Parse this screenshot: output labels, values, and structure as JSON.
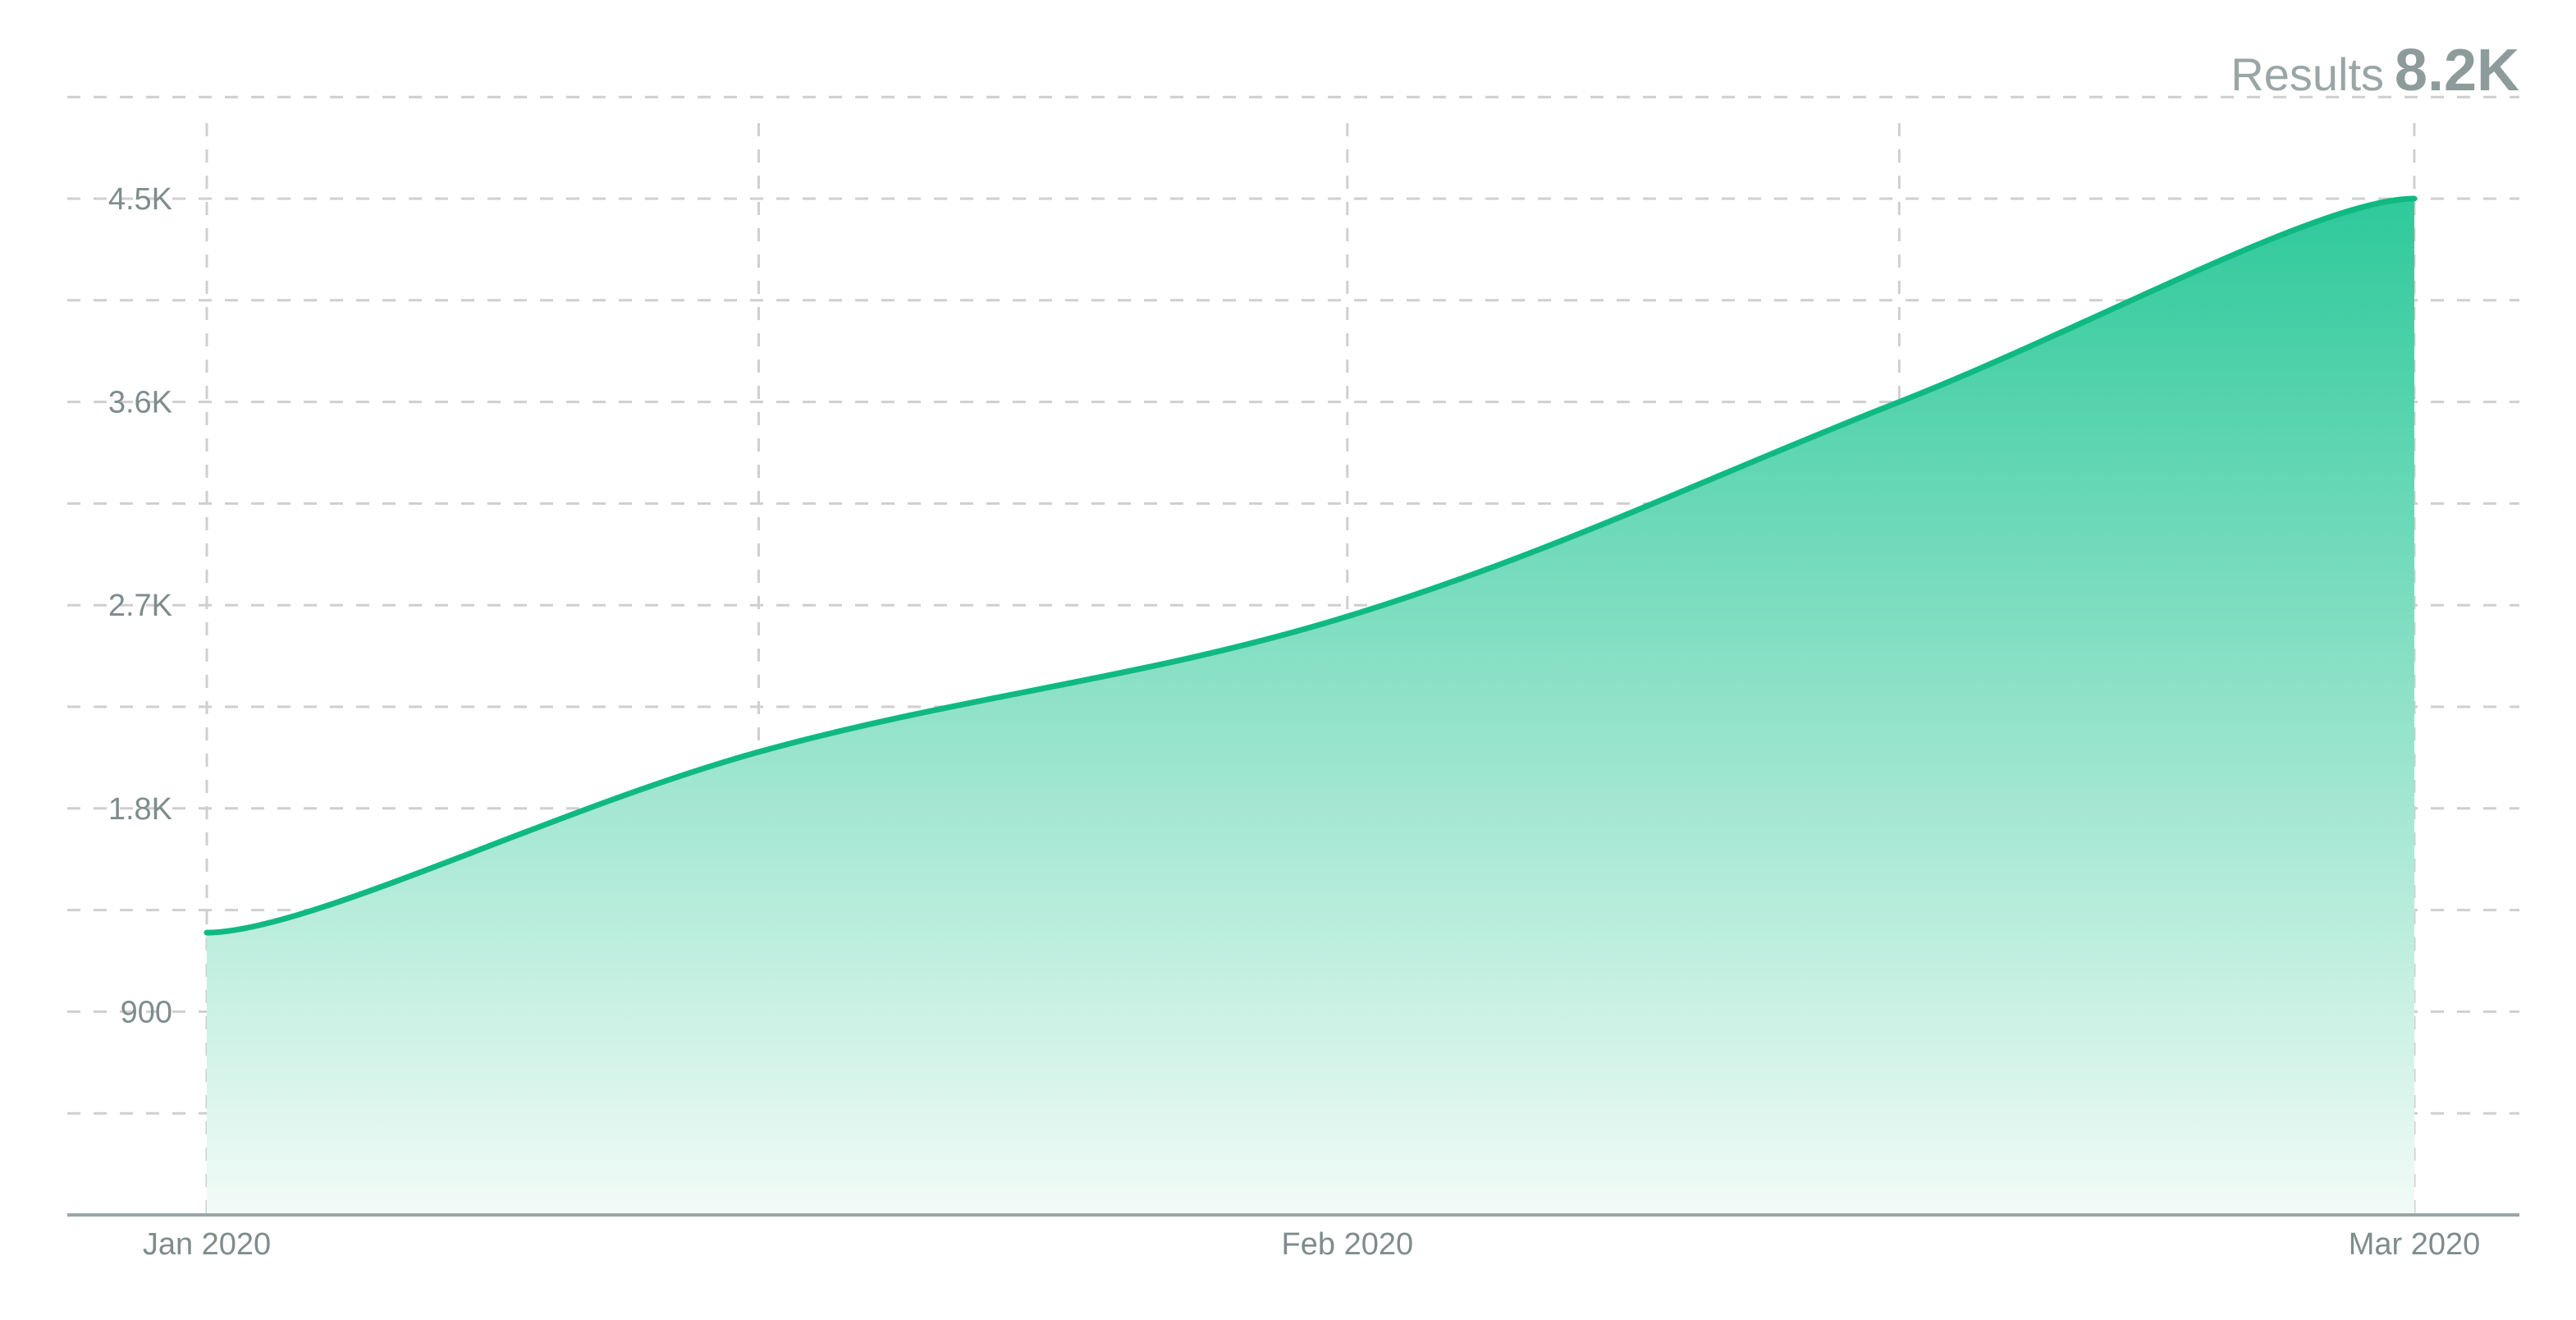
{
  "header": {
    "label": "Results",
    "value": "8.2K"
  },
  "chart_data": {
    "type": "area",
    "title": "",
    "xlabel": "",
    "ylabel": "",
    "x": [
      "2020-01-01",
      "2020-01-16",
      "2020-02-01",
      "2020-02-16",
      "2020-03-01"
    ],
    "series": [
      {
        "values": [
          1250,
          2050,
          2650,
          3600,
          4500
        ]
      }
    ],
    "x_ticks": [
      {
        "value": "2020-01-01",
        "label": "Jan 2020"
      },
      {
        "value": "2020-02-01",
        "label": "Feb 2020"
      },
      {
        "value": "2020-03-01",
        "label": "Mar 2020"
      }
    ],
    "y_ticks": [
      {
        "value": 900,
        "label": "900"
      },
      {
        "value": 1800,
        "label": "1.8K"
      },
      {
        "value": 2700,
        "label": "2.7K"
      },
      {
        "value": 3600,
        "label": "3.6K"
      },
      {
        "value": 4500,
        "label": "4.5K"
      }
    ],
    "ylim": [
      0,
      4500
    ],
    "grid": true,
    "colors": {
      "line": "#10b981",
      "fill_top": "#2ec99a",
      "fill_bottom": "#f2fbf7",
      "grid": "#cfcfcf",
      "axis": "#9aa6a6",
      "tick_text": "#7f8c8d"
    }
  }
}
